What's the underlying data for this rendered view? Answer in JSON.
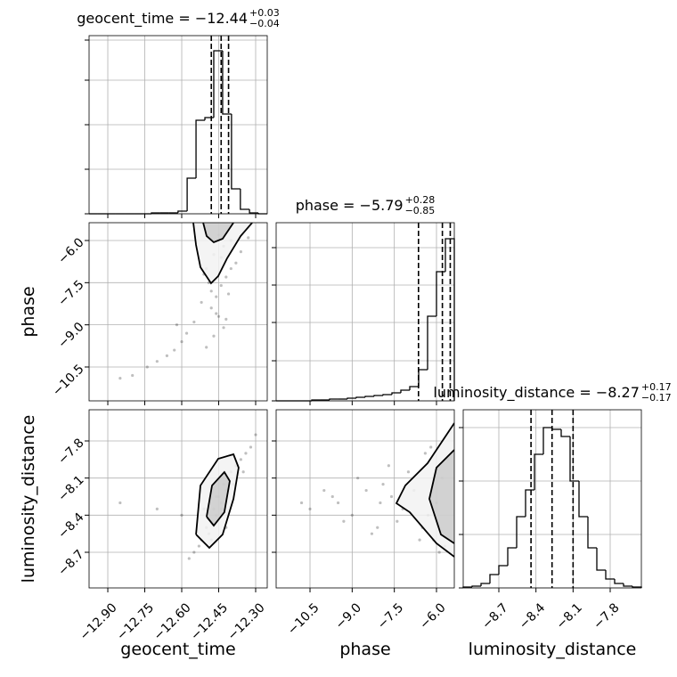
{
  "chart_data": {
    "type": "corner",
    "grid": true,
    "parameters": [
      {
        "name": "geocent_time",
        "lim": [
          -12.976,
          -12.253
        ],
        "ticks": [
          {
            "value": -12.9,
            "label": "−12.90"
          },
          {
            "value": -12.75,
            "label": "−12.75"
          },
          {
            "value": -12.6,
            "label": "−12.60"
          },
          {
            "value": -12.45,
            "label": "−12.45"
          },
          {
            "value": -12.3,
            "label": "−12.30"
          }
        ],
        "quantiles": [
          -12.48,
          -12.44,
          -12.41
        ],
        "title": {
          "main": "geocent_time = −12.44",
          "upper": "+0.03",
          "lower": "−0.04"
        },
        "hist": {
          "ylim": [
            0,
            200
          ],
          "yticks": [
            0,
            50,
            100,
            150,
            195
          ],
          "bins": [
            -12.976,
            -12.94,
            -12.904,
            -12.868,
            -12.831,
            -12.795,
            -12.759,
            -12.723,
            -12.687,
            -12.651,
            -12.615,
            -12.578,
            -12.542,
            -12.506,
            -12.47,
            -12.434,
            -12.398,
            -12.362,
            -12.325,
            -12.289,
            -12.253
          ],
          "values": [
            0,
            0,
            0,
            0,
            0,
            0,
            0,
            1,
            1,
            1,
            3,
            40,
            105,
            108,
            183,
            112,
            28,
            5,
            1,
            0
          ]
        }
      },
      {
        "name": "phase",
        "lim": [
          -11.705,
          -5.366
        ],
        "ticks": [
          {
            "value": -10.5,
            "label": "−10.5"
          },
          {
            "value": -9.0,
            "label": "−9.0"
          },
          {
            "value": -7.5,
            "label": "−7.5"
          },
          {
            "value": -6.0,
            "label": "−6.0"
          }
        ],
        "quantiles": [
          -6.64,
          -5.79,
          -5.51
        ],
        "title": {
          "main": "phase = −5.79",
          "upper": "+0.28",
          "lower": "−0.85"
        },
        "hist": {
          "ylim": [
            0,
            200
          ],
          "yticks": [
            0,
            45,
            88,
            130,
            172
          ],
          "bins": [
            -11.705,
            -11.388,
            -11.071,
            -10.754,
            -10.437,
            -10.12,
            -9.804,
            -9.487,
            -9.17,
            -8.853,
            -8.536,
            -8.219,
            -7.902,
            -7.585,
            -7.268,
            -6.951,
            -6.634,
            -6.317,
            -6.0,
            -5.683,
            -5.366
          ],
          "values": [
            0,
            0,
            0,
            0,
            1,
            1,
            2,
            2,
            3,
            4,
            5,
            6,
            7,
            9,
            12,
            16,
            35,
            95,
            145,
            182
          ]
        }
      },
      {
        "name": "luminosity_distance",
        "lim": [
          -8.988,
          -7.548
        ],
        "ticks": [
          {
            "value": -8.7,
            "label": "−8.7"
          },
          {
            "value": -8.4,
            "label": "−8.4"
          },
          {
            "value": -8.1,
            "label": "−8.1"
          },
          {
            "value": -7.8,
            "label": "−7.8"
          }
        ],
        "quantiles": [
          -8.44,
          -8.27,
          -8.1
        ],
        "title": {
          "main": "luminosity_distance = −8.27",
          "upper": "+0.17",
          "lower": "−0.17"
        },
        "hist": {
          "ylim": [
            0,
            200
          ],
          "yticks": [
            0,
            60,
            120,
            180
          ],
          "bins": [
            -8.988,
            -8.916,
            -8.844,
            -8.772,
            -8.7,
            -8.628,
            -8.556,
            -8.484,
            -8.412,
            -8.34,
            -8.268,
            -8.196,
            -8.124,
            -8.052,
            -7.98,
            -7.908,
            -7.836,
            -7.764,
            -7.692,
            -7.62,
            -7.548
          ],
          "values": [
            1,
            2,
            5,
            15,
            25,
            45,
            80,
            110,
            150,
            180,
            178,
            170,
            120,
            80,
            45,
            20,
            10,
            5,
            2,
            1
          ]
        }
      }
    ],
    "pairs": [
      {
        "points": {
          "x": [
            -12.45,
            -12.43,
            -12.47,
            -12.4,
            -12.5,
            -12.44,
            -12.42,
            -12.46,
            -12.38,
            -12.48,
            -12.41,
            -12.45,
            -12.49,
            -12.43,
            -12.52,
            -12.47,
            -12.44,
            -12.55,
            -12.58,
            -12.6,
            -12.63,
            -12.66,
            -12.7,
            -12.74,
            -12.8,
            -12.85,
            -12.62,
            -12.5,
            -12.46,
            -12.42,
            -12.36,
            -12.33,
            -12.48,
            -12.51,
            -12.4
          ],
          "y": [
            -5.8,
            -6.2,
            -6.5,
            -6.0,
            -7.0,
            -7.6,
            -7.3,
            -8.0,
            -6.8,
            -8.4,
            -7.9,
            -8.7,
            -7.5,
            -9.1,
            -8.2,
            -9.4,
            -6.6,
            -8.9,
            -9.3,
            -9.6,
            -9.9,
            -10.1,
            -10.3,
            -10.5,
            -10.8,
            -10.9,
            -9.0,
            -9.8,
            -8.6,
            -8.8,
            -6.4,
            -5.9,
            -7.8,
            -7.2,
            -7.0
          ]
        },
        "contours": [
          {
            "x": [
              -12.553,
              -12.542,
              -12.524,
              -12.481,
              -12.452,
              -12.416,
              -12.361,
              -12.314
            ],
            "y": [
              -5.366,
              -6.158,
              -6.951,
              -7.521,
              -7.268,
              -6.634,
              -5.841,
              -5.366
            ]
          },
          {
            "x": [
              -12.513,
              -12.499,
              -12.47,
              -12.434,
              -12.39
            ],
            "y": [
              -5.366,
              -5.841,
              -6.063,
              -5.936,
              -5.366
            ]
          }
        ]
      },
      {
        "points": {
          "x": [
            -12.45,
            -12.43,
            -12.47,
            -12.4,
            -12.5,
            -12.44,
            -12.42,
            -12.46,
            -12.38,
            -12.48,
            -12.41,
            -12.52,
            -12.49,
            -12.36,
            -12.34,
            -12.32,
            -12.3,
            -12.53,
            -12.55,
            -12.57,
            -12.44,
            -12.39,
            -12.46,
            -12.6,
            -12.7,
            -12.85,
            -12.51,
            -12.35,
            -12.42,
            -12.48
          ],
          "y": [
            -8.25,
            -8.15,
            -8.35,
            -8.05,
            -8.5,
            -8.3,
            -8.2,
            -8.4,
            -8.0,
            -8.45,
            -8.1,
            -8.6,
            -8.55,
            -7.95,
            -7.9,
            -7.85,
            -7.75,
            -8.65,
            -8.7,
            -8.75,
            -8.35,
            -8.15,
            -8.25,
            -8.4,
            -8.35,
            -8.3,
            -8.35,
            -8.05,
            -8.5,
            -8.6
          ]
        },
        "contours": [
          {
            "x": [
              -12.542,
              -12.524,
              -12.452,
              -12.39,
              -12.369,
              -12.39,
              -12.434,
              -12.488,
              -12.542
            ],
            "y": [
              -8.556,
              -8.16,
              -7.944,
              -7.908,
              -8.016,
              -8.268,
              -8.556,
              -8.664,
              -8.556
            ]
          },
          {
            "x": [
              -12.499,
              -12.477,
              -12.427,
              -12.405,
              -12.427,
              -12.47,
              -12.499
            ],
            "y": [
              -8.412,
              -8.16,
              -8.052,
              -8.124,
              -8.376,
              -8.484,
              -8.412
            ]
          }
        ]
      },
      {
        "points": {
          "x": [
            -6.0,
            -5.8,
            -6.3,
            -6.8,
            -7.2,
            -7.6,
            -8.0,
            -8.5,
            -9.0,
            -9.5,
            -10.0,
            -10.5,
            -6.1,
            -5.6,
            -6.5,
            -7.0,
            -7.4,
            -7.9,
            -8.3,
            -8.8,
            -9.3,
            -5.9,
            -6.2,
            -6.6,
            -7.7,
            -8.1,
            -9.7,
            -10.8,
            -5.7,
            -6.4
          ],
          "y": [
            -8.3,
            -8.1,
            -8.4,
            -8.2,
            -8.35,
            -8.25,
            -8.3,
            -8.2,
            -8.4,
            -8.3,
            -8.2,
            -8.35,
            -8.6,
            -7.95,
            -8.5,
            -8.05,
            -8.45,
            -8.15,
            -8.55,
            -8.1,
            -8.45,
            -8.7,
            -7.85,
            -8.6,
            -8.0,
            -8.5,
            -8.25,
            -8.3,
            -8.65,
            -7.9
          ]
        },
        "contours": [
          {
            "x": [
              -5.366,
              -6.317,
              -7.109,
              -7.426,
              -6.951,
              -6.0,
              -5.366
            ],
            "y": [
              -7.656,
              -7.98,
              -8.16,
              -8.304,
              -8.376,
              -8.628,
              -8.736
            ]
          },
          {
            "x": [
              -5.366,
              -6.0,
              -6.254,
              -5.842,
              -5.366
            ],
            "y": [
              -7.872,
              -8.016,
              -8.268,
              -8.556,
              -8.628
            ]
          }
        ]
      }
    ]
  }
}
